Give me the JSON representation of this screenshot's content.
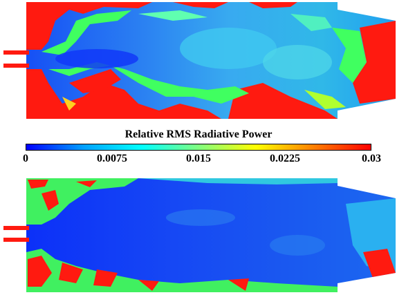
{
  "colorbar": {
    "title": "Relative RMS Radiative Power",
    "ticks": [
      "0",
      "0.0075",
      "0.015",
      "0.0225",
      "0.03"
    ],
    "min": 0,
    "max": 0.03,
    "colormap": [
      "#0000ff",
      "#00a0ff",
      "#00ffff",
      "#80ff80",
      "#ffff00",
      "#ff8000",
      "#ff0000"
    ]
  },
  "panels": [
    {
      "role": "top-field",
      "dominant_color": "#2e9bf0"
    },
    {
      "role": "bottom-field",
      "dominant_color": "#1040f0"
    }
  ]
}
